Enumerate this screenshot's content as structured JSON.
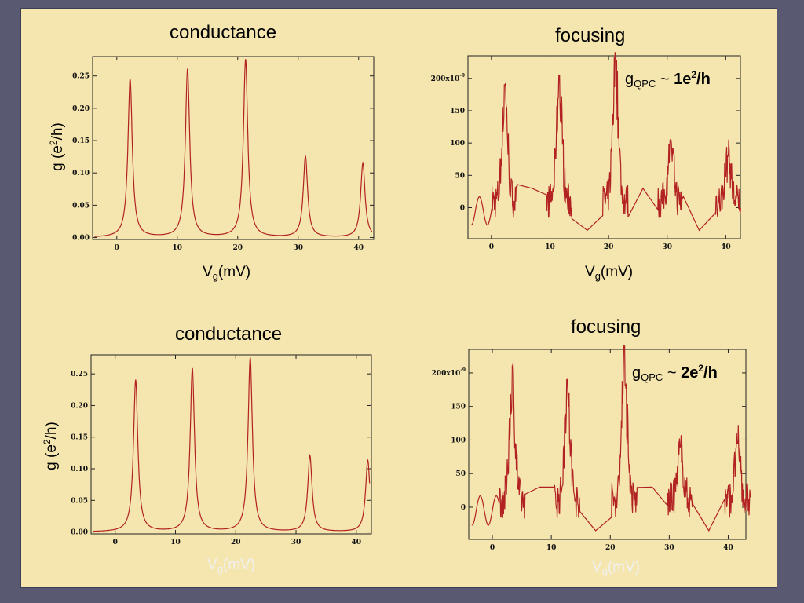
{
  "slide": {
    "panels": [
      {
        "title": "conductance",
        "xlabel_main": "V",
        "xlabel_sub": "g",
        "xlabel_rest": "(mV)",
        "ylabel_a": "g (e",
        "ylabel_sup": "2",
        "ylabel_b": "/h)"
      },
      {
        "title": "focusing",
        "xlabel_main": "V",
        "xlabel_sub": "g",
        "xlabel_rest": "(mV)",
        "note_g": "g",
        "note_sub": "QPC",
        "note_tilde": " ~ ",
        "note_val": "1e",
        "note_sup": "2",
        "note_tail": "/h"
      },
      {
        "title": "conductance",
        "xlabel_main": "V",
        "xlabel_sub": "g",
        "xlabel_rest": "(mV)",
        "ylabel_a": "g (e",
        "ylabel_sup": "2",
        "ylabel_b": "/h)"
      },
      {
        "title": "focusing",
        "xlabel_main": "V",
        "xlabel_sub": "g",
        "xlabel_rest": "(mV)",
        "note_g": "g",
        "note_sub": "QPC",
        "note_tilde": " ~ ",
        "note_val": "2e",
        "note_sup": "2",
        "note_tail": "/h"
      }
    ]
  },
  "colors": {
    "trace": "#cc1111",
    "trace_dark": "#b22222",
    "background": "#f5e6b0",
    "frame": "#595a72"
  },
  "chart_data": [
    {
      "type": "line",
      "title": "conductance",
      "xlabel": "Vg(mV)",
      "ylabel": "g (e2/h)",
      "xlim": [
        -4,
        42.5
      ],
      "ylim": [
        -0.003,
        0.28
      ],
      "xticks": [
        0,
        10,
        20,
        30,
        40
      ],
      "xtick_labels": [
        "0",
        "10",
        "20",
        "30",
        "40"
      ],
      "yticks": [
        0,
        0.05,
        0.1,
        0.15,
        0.2,
        0.25
      ],
      "ytick_labels": [
        "0.00",
        "0.05",
        "0.10",
        "0.15",
        "0.20",
        "0.25"
      ],
      "peaks": [
        {
          "x": 2.2,
          "y": 0.245
        },
        {
          "x": 11.7,
          "y": 0.26
        },
        {
          "x": 21.3,
          "y": 0.275
        },
        {
          "x": 31.2,
          "y": 0.125
        },
        {
          "x": 40.7,
          "y": 0.115
        }
      ]
    },
    {
      "type": "line",
      "title": "focusing",
      "xlabel": "Vg(mV)",
      "xlim": [
        -4,
        42.5
      ],
      "ylim": [
        -48,
        235
      ],
      "xticks": [
        0,
        10,
        20,
        30,
        40
      ],
      "xtick_labels": [
        "0",
        "10",
        "20",
        "30",
        "40"
      ],
      "yticks": [
        0,
        50,
        100,
        150,
        200
      ],
      "ytick_labels": [
        "0",
        "50",
        "100",
        "150",
        "200x10-9"
      ],
      "peaks": [
        {
          "x": 2.3,
          "y": 190
        },
        {
          "x": 11.6,
          "y": 205
        },
        {
          "x": 21.2,
          "y": 240
        },
        {
          "x": 30.6,
          "y": 105
        },
        {
          "x": 40.4,
          "y": 80
        }
      ],
      "annotation": "gQPC ~ 1e2/h"
    },
    {
      "type": "line",
      "title": "conductance",
      "xlabel": "Vg(mV)",
      "ylabel": "g (e2/h)",
      "xlim": [
        -4,
        42.5
      ],
      "ylim": [
        -0.003,
        0.28
      ],
      "xticks": [
        0,
        10,
        20,
        30,
        40
      ],
      "xtick_labels": [
        "0",
        "10",
        "20",
        "30",
        "40"
      ],
      "yticks": [
        0,
        0.05,
        0.1,
        0.15,
        0.2,
        0.25
      ],
      "ytick_labels": [
        "0.00",
        "0.05",
        "0.10",
        "0.15",
        "0.20",
        "0.25"
      ],
      "peaks": [
        {
          "x": 3.4,
          "y": 0.24
        },
        {
          "x": 12.8,
          "y": 0.258
        },
        {
          "x": 22.4,
          "y": 0.275
        },
        {
          "x": 32.3,
          "y": 0.12
        },
        {
          "x": 41.9,
          "y": 0.113
        }
      ]
    },
    {
      "type": "line",
      "title": "focusing",
      "xlabel": "Vg(mV)",
      "xlim": [
        -4,
        43
      ],
      "ylim": [
        -48,
        235
      ],
      "xticks": [
        0,
        10,
        20,
        30,
        40
      ],
      "xtick_labels": [
        "0",
        "10",
        "20",
        "30",
        "40"
      ],
      "yticks": [
        0,
        50,
        100,
        150,
        200
      ],
      "ytick_labels": [
        "0",
        "50",
        "100",
        "150",
        "200x10-9"
      ],
      "peaks": [
        {
          "x": 3.4,
          "y": 210
        },
        {
          "x": 12.7,
          "y": 190
        },
        {
          "x": 22.4,
          "y": 240
        },
        {
          "x": 31.9,
          "y": 90
        },
        {
          "x": 41.6,
          "y": 95
        }
      ],
      "annotation": "gQPC ~ 2e2/h"
    }
  ]
}
